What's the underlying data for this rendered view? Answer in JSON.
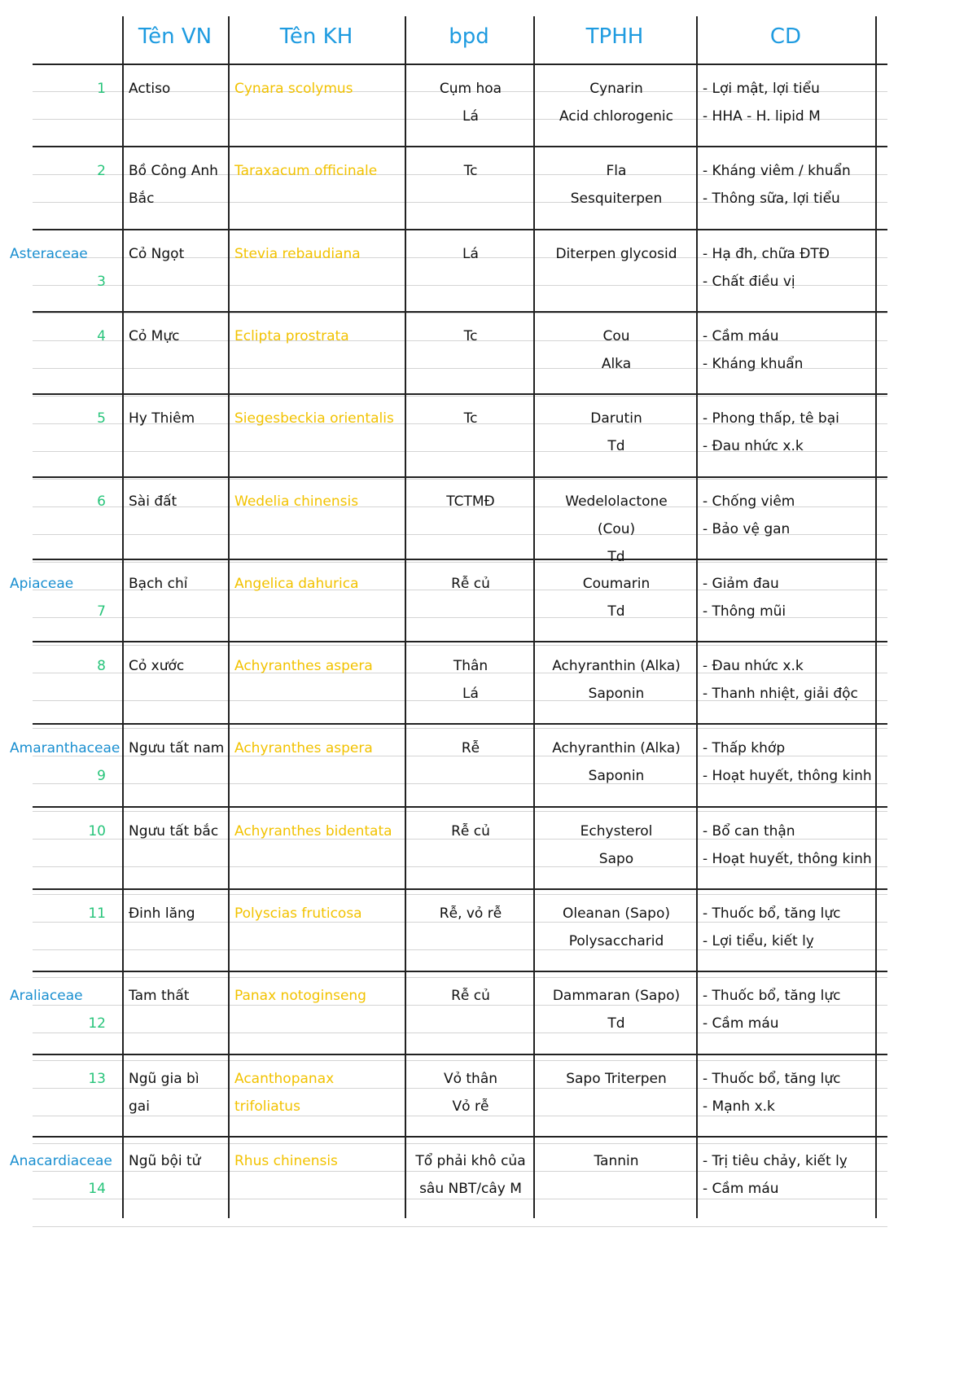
{
  "header": {
    "columns": [
      "Tên VN",
      "Tên KH",
      "bpd",
      "TPHH",
      "CD"
    ]
  },
  "rows": [
    {
      "no": "1",
      "vn": [
        "Actiso"
      ],
      "kh": "Cynara scolymus",
      "bpd": [
        "Cụm hoa",
        "Lá"
      ],
      "tphh": [
        "Cynarin",
        "Acid chlorogenic"
      ],
      "cd": [
        "- Lợi mật, lợi tiểu",
        "- HHA - H. lipid M"
      ]
    },
    {
      "no": "2",
      "vn": [
        "Bồ Công Anh",
        "Bắc"
      ],
      "kh": "Taraxacum officinale",
      "bpd": [
        "Tc"
      ],
      "tphh": [
        "Fla",
        "Sesquiterpen"
      ],
      "cd": [
        "- Kháng viêm / khuẩn",
        "- Thông sữa, lợi tiểu"
      ]
    },
    {
      "no": "3",
      "family": "Asteraceae",
      "vn": [
        "Cỏ Ngọt"
      ],
      "kh": "Stevia rebaudiana",
      "bpd": [
        "Lá"
      ],
      "tphh": [
        "Diterpen glycosid"
      ],
      "cd": [
        "- Hạ đh, chữa ĐTĐ",
        "- Chất điều vị"
      ]
    },
    {
      "no": "4",
      "vn": [
        "Cỏ Mực"
      ],
      "kh": "Eclipta prostrata",
      "bpd": [
        "Tc"
      ],
      "tphh": [
        "Cou",
        "Alka"
      ],
      "cd": [
        "- Cầm máu",
        "- Kháng khuẩn"
      ]
    },
    {
      "no": "5",
      "vn": [
        "Hy Thiêm"
      ],
      "kh": "Siegesbeckia orientalis",
      "bpd": [
        "Tc"
      ],
      "tphh": [
        "Darutin",
        "Td"
      ],
      "cd": [
        "- Phong thấp, tê bại",
        "- Đau nhức x.k"
      ]
    },
    {
      "no": "6",
      "vn": [
        "Sài đất"
      ],
      "kh": "Wedelia chinensis",
      "bpd": [
        "TCTMĐ"
      ],
      "tphh": [
        "Wedelolactone",
        "(Cou)",
        "Td"
      ],
      "cd": [
        "- Chống viêm",
        "- Bảo vệ gan"
      ]
    },
    {
      "no": "7",
      "family": "Apiaceae",
      "vn": [
        "Bạch chỉ"
      ],
      "kh": "Angelica dahurica",
      "bpd": [
        "Rễ củ"
      ],
      "tphh": [
        "Coumarin",
        "Td"
      ],
      "cd": [
        "- Giảm đau",
        "- Thông mũi"
      ]
    },
    {
      "no": "8",
      "vn": [
        "Cỏ xước"
      ],
      "kh": "Achyranthes aspera",
      "bpd": [
        "Thân",
        "Lá"
      ],
      "tphh": [
        "Achyranthin (Alka)",
        "Saponin"
      ],
      "cd": [
        "- Đau nhức x.k",
        "- Thanh nhiệt, giải độc"
      ]
    },
    {
      "no": "9",
      "family": "Amaranthaceae",
      "vn": [
        "Ngưu tất nam"
      ],
      "kh": "Achyranthes aspera",
      "bpd": [
        "Rễ"
      ],
      "tphh": [
        "Achyranthin (Alka)",
        "Saponin"
      ],
      "cd": [
        "- Thấp khớp",
        "- Hoạt huyết, thông kinh"
      ]
    },
    {
      "no": "10",
      "vn": [
        "Ngưu tất bắc"
      ],
      "kh": "Achyranthes bidentata",
      "bpd": [
        "Rễ củ"
      ],
      "tphh": [
        "Echysterol",
        "Sapo"
      ],
      "cd": [
        "- Bổ can thận",
        "- Hoạt huyết, thông kinh"
      ]
    },
    {
      "no": "11",
      "vn": [
        "Đinh lăng"
      ],
      "kh": "Polyscias fruticosa",
      "bpd": [
        "Rễ, vỏ rễ"
      ],
      "tphh": [
        "Oleanan (Sapo)",
        "Polysaccharid"
      ],
      "cd": [
        "- Thuốc bổ, tăng lực",
        "- Lợi tiểu, kiết lỵ"
      ]
    },
    {
      "no": "12",
      "family": "Araliaceae",
      "vn": [
        "Tam thất"
      ],
      "kh": "Panax notoginseng",
      "bpd": [
        "Rễ củ"
      ],
      "tphh": [
        "Dammaran (Sapo)",
        "Td"
      ],
      "cd": [
        "- Thuốc bổ, tăng lực",
        "- Cầm máu"
      ]
    },
    {
      "no": "13",
      "vn": [
        "Ngũ gia bì",
        "gai"
      ],
      "kh": "Acanthopanax trifoliatus",
      "bpd": [
        "Vỏ thân",
        "Vỏ rễ"
      ],
      "tphh": [
        "Sapo Triterpen"
      ],
      "cd": [
        "- Thuốc bổ, tăng lực",
        "- Mạnh x.k"
      ]
    },
    {
      "no": "14",
      "family": "Anacardiaceae",
      "vn": [
        "Ngũ bội tử"
      ],
      "kh": "Rhus chinensis",
      "bpd": [
        "Tổ phải khô của",
        "sâu NBT/cây M"
      ],
      "tphh": [
        "Tannin"
      ],
      "cd": [
        "- Trị tiêu chảy, kiết lỵ",
        "- Cầm máu"
      ]
    }
  ]
}
